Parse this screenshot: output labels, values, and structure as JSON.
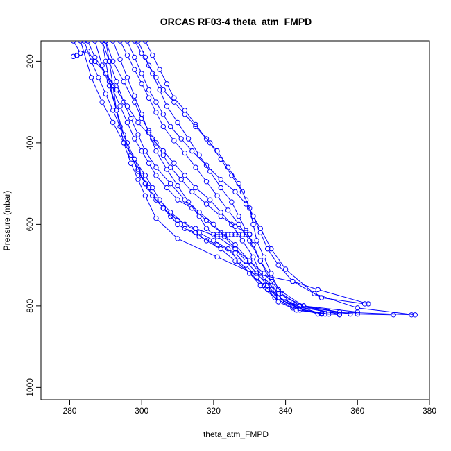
{
  "chart_data": {
    "type": "line",
    "title": "ORCAS RF03-4 theta_atm_FMPD",
    "xlabel": "theta_atm_FMPD",
    "ylabel": "Pressure (mbar)",
    "xlim": [
      272,
      380
    ],
    "ylim": [
      1030,
      150
    ],
    "y_reversed": true,
    "x_ticks": [
      280,
      300,
      320,
      340,
      360,
      380
    ],
    "y_ticks": [
      200,
      400,
      600,
      800,
      1000
    ],
    "grid": false,
    "legend": "none",
    "marker": "open-circle",
    "series": [
      {
        "x": [
          281,
          283,
          282,
          281,
          282,
          283,
          285,
          287,
          290,
          292,
          294,
          296,
          298,
          300,
          302,
          304,
          307,
          310,
          314,
          318,
          322,
          326,
          330,
          334,
          338,
          345,
          355,
          375
        ],
        "y": [
          150,
          180,
          186,
          188,
          185,
          180,
          175,
          200,
          230,
          270,
          310,
          350,
          390,
          420,
          450,
          480,
          510,
          540,
          560,
          590,
          620,
          650,
          690,
          730,
          770,
          800,
          815,
          822
        ]
      },
      {
        "x": [
          290,
          292,
          295,
          298,
          300,
          302,
          304,
          306,
          308,
          311,
          314,
          318,
          322,
          326,
          329,
          330
        ],
        "y": [
          150,
          200,
          250,
          300,
          340,
          370,
          400,
          430,
          460,
          490,
          520,
          550,
          580,
          605,
          620,
          624
        ]
      },
      {
        "x": [
          296,
          298,
          300,
          302,
          304,
          306,
          308,
          311,
          314,
          318,
          322,
          326,
          329,
          331,
          333,
          336,
          340,
          348,
          360,
          376
        ],
        "y": [
          150,
          190,
          230,
          270,
          300,
          330,
          360,
          390,
          420,
          455,
          490,
          520,
          550,
          580,
          610,
          660,
          710,
          770,
          805,
          822
        ]
      },
      {
        "x": [
          298,
          300,
          302,
          304,
          306,
          309,
          312,
          315,
          319,
          322,
          325,
          328,
          330,
          331,
          332,
          334,
          336,
          338,
          341,
          344,
          350,
          355
        ],
        "y": [
          150,
          180,
          210,
          240,
          270,
          300,
          330,
          360,
          400,
          440,
          480,
          520,
          560,
          600,
          640,
          680,
          720,
          760,
          790,
          810,
          818,
          822
        ]
      },
      {
        "x": [
          301,
          303,
          305,
          307,
          309,
          312,
          315,
          318,
          321,
          324,
          327,
          329,
          331,
          333,
          335,
          338,
          342,
          350,
          362
        ],
        "y": [
          150,
          185,
          220,
          255,
          290,
          320,
          355,
          390,
          420,
          460,
          500,
          540,
          580,
          620,
          660,
          700,
          740,
          780,
          795
        ]
      },
      {
        "x": [
          285,
          287,
          290,
          293,
          296,
          299,
          303,
          306,
          309,
          312,
          315,
          319,
          322,
          325,
          328,
          331,
          333,
          336,
          340,
          350
        ],
        "y": [
          150,
          190,
          230,
          270,
          310,
          350,
          390,
          420,
          450,
          480,
          510,
          540,
          570,
          600,
          640,
          680,
          720,
          760,
          790,
          820
        ]
      },
      {
        "x": [
          289,
          291,
          293,
          295,
          297,
          299,
          301,
          304,
          308,
          312,
          316,
          320,
          323,
          326,
          329,
          332,
          335,
          338,
          342,
          355
        ],
        "y": [
          150,
          200,
          250,
          300,
          340,
          380,
          420,
          460,
          500,
          540,
          570,
          600,
          630,
          660,
          690,
          720,
          750,
          780,
          800,
          820
        ]
      },
      {
        "x": [
          284,
          286,
          288,
          290,
          292,
          294,
          296,
          298,
          300,
          302,
          304,
          306,
          308,
          310,
          312,
          315,
          318,
          322,
          326,
          330,
          334,
          338,
          344,
          358
        ],
        "y": [
          150,
          200,
          240,
          280,
          320,
          360,
          400,
          440,
          480,
          510,
          540,
          560,
          580,
          600,
          610,
          620,
          640,
          660,
          690,
          720,
          750,
          780,
          800,
          820
        ]
      },
      {
        "x": [
          283,
          286,
          289,
          292,
          295,
          298,
          301,
          303,
          305,
          308,
          312,
          316,
          320,
          324,
          327,
          330,
          333,
          337,
          342,
          352
        ],
        "y": [
          150,
          240,
          300,
          350,
          400,
          440,
          480,
          510,
          540,
          570,
          600,
          620,
          640,
          660,
          690,
          720,
          750,
          780,
          805,
          820
        ]
      },
      {
        "x": [
          287,
          289,
          291,
          293,
          295,
          297,
          299,
          301,
          303,
          306,
          310,
          315,
          321,
          326,
          330,
          334,
          338,
          345,
          360
        ],
        "y": [
          150,
          210,
          260,
          320,
          380,
          430,
          470,
          500,
          530,
          560,
          590,
          610,
          630,
          660,
          690,
          720,
          760,
          800,
          815
        ]
      },
      {
        "x": [
          290,
          291,
          292,
          293,
          295,
          297,
          299,
          301,
          303,
          306,
          310,
          316,
          321,
          326,
          329,
          332,
          335,
          338,
          343,
          351
        ],
        "y": [
          150,
          200,
          260,
          320,
          380,
          430,
          465,
          500,
          530,
          560,
          600,
          630,
          650,
          670,
          700,
          730,
          760,
          790,
          810,
          820
        ]
      },
      {
        "x": [
          289,
          290,
          291,
          293,
          295,
          297,
          299,
          301,
          304,
          310,
          321,
          331,
          342,
          349,
          363
        ],
        "y": [
          150,
          200,
          250,
          320,
          400,
          450,
          490,
          530,
          585,
          635,
          680,
          720,
          740,
          760,
          795
        ]
      },
      {
        "x": [
          292,
          294,
          296,
          298,
          300,
          302,
          304,
          307,
          310,
          313,
          316,
          318,
          320,
          321,
          322,
          323,
          324,
          325,
          326,
          327,
          328,
          329,
          330
        ],
        "y": [
          150,
          195,
          240,
          285,
          330,
          375,
          420,
          465,
          505,
          545,
          580,
          610,
          625,
          625,
          625,
          625,
          625,
          625,
          625,
          625,
          625,
          625,
          625
        ]
      },
      {
        "x": [
          294,
          296,
          298,
          300,
          302,
          304,
          306,
          309,
          312,
          315,
          318,
          321,
          324,
          327,
          330,
          333,
          336,
          338,
          342,
          349
        ],
        "y": [
          150,
          185,
          220,
          255,
          290,
          325,
          360,
          395,
          425,
          460,
          495,
          530,
          565,
          600,
          640,
          690,
          740,
          780,
          800,
          820
        ]
      },
      {
        "x": [
          299,
          301,
          303,
          305,
          307,
          310,
          313,
          316,
          319,
          322,
          325,
          327,
          329,
          331,
          333,
          336,
          339,
          344,
          352,
          360,
          370
        ],
        "y": [
          150,
          190,
          230,
          270,
          310,
          350,
          390,
          430,
          470,
          510,
          545,
          580,
          615,
          650,
          690,
          730,
          770,
          800,
          815,
          820,
          822
        ]
      }
    ]
  }
}
